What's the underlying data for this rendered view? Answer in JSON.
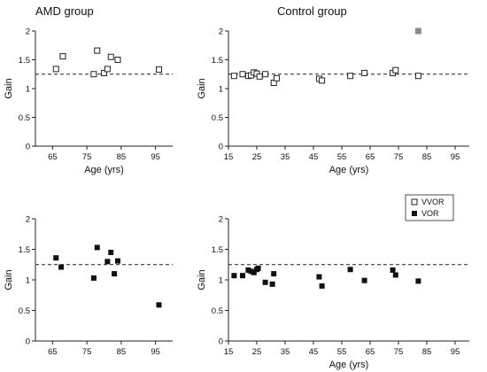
{
  "figure": {
    "titles": {
      "amd": "AMD group",
      "control": "Control group"
    },
    "legend": {
      "vvor_label": "VVOR",
      "vor_label": "VOR"
    },
    "colors": {
      "vvor_fill": "#ffffff",
      "vvor_stroke": "#222222",
      "vor_fill": "#111111",
      "outlier_fill": "#8a8a8a",
      "reference_line": "#222222",
      "axis": "#222222"
    }
  },
  "chart_data": [
    {
      "id": "amd-vvor",
      "type": "scatter",
      "title": "AMD group",
      "xlabel": "Age (yrs)",
      "ylabel": "Gain",
      "xlim": [
        60,
        100
      ],
      "ylim": [
        0,
        2
      ],
      "xticks": [
        65,
        75,
        85,
        95
      ],
      "yticks": [
        0,
        0.5,
        1,
        1.5,
        2
      ],
      "reference_line": 1.25,
      "marker": "open-square",
      "points": [
        [
          66,
          1.34
        ],
        [
          68,
          1.56
        ],
        [
          77,
          1.25
        ],
        [
          78,
          1.66
        ],
        [
          80,
          1.27
        ],
        [
          81,
          1.34
        ],
        [
          82,
          1.55
        ],
        [
          84,
          1.5
        ],
        [
          96,
          1.33
        ]
      ]
    },
    {
      "id": "control-vvor",
      "type": "scatter",
      "title": "Control group",
      "xlabel": "Age (yrs)",
      "ylabel": "Gain",
      "xlim": [
        15,
        100
      ],
      "ylim": [
        0,
        2
      ],
      "xticks": [
        15,
        25,
        35,
        45,
        55,
        65,
        75,
        85,
        95
      ],
      "yticks": [
        0,
        0.5,
        1,
        1.5,
        2
      ],
      "reference_line": 1.25,
      "marker": "open-square",
      "points": [
        [
          17,
          1.22
        ],
        [
          20,
          1.25
        ],
        [
          22,
          1.22
        ],
        [
          23,
          1.23
        ],
        [
          24,
          1.28
        ],
        [
          25,
          1.26
        ],
        [
          26,
          1.21
        ],
        [
          28,
          1.25
        ],
        [
          31,
          1.1
        ],
        [
          32,
          1.18
        ],
        [
          47,
          1.17
        ],
        [
          48,
          1.14
        ],
        [
          58,
          1.22
        ],
        [
          63,
          1.27
        ],
        [
          73,
          1.27
        ],
        [
          74,
          1.32
        ],
        [
          82,
          1.22
        ]
      ],
      "outlier_points": [
        [
          82,
          2.0
        ]
      ]
    },
    {
      "id": "amd-vor",
      "type": "scatter",
      "title": "",
      "xlabel": "",
      "ylabel": "Gain",
      "xlim": [
        60,
        100
      ],
      "ylim": [
        0,
        2
      ],
      "xticks": [
        65,
        75,
        85,
        95
      ],
      "yticks": [
        0,
        0.5,
        1,
        1.5,
        2
      ],
      "reference_line": 1.25,
      "marker": "filled-square",
      "points": [
        [
          66,
          1.36
        ],
        [
          67.5,
          1.21
        ],
        [
          77,
          1.03
        ],
        [
          78,
          1.53
        ],
        [
          81,
          1.3
        ],
        [
          82,
          1.45
        ],
        [
          83,
          1.1
        ],
        [
          84,
          1.31
        ],
        [
          96,
          0.59
        ]
      ]
    },
    {
      "id": "control-vor",
      "type": "scatter",
      "title": "",
      "xlabel": "Age (yrs)",
      "ylabel": "Gain",
      "xlim": [
        15,
        100
      ],
      "ylim": [
        0,
        2
      ],
      "xticks": [
        15,
        25,
        35,
        45,
        55,
        65,
        75,
        85,
        95
      ],
      "yticks": [
        0,
        0.5,
        1,
        1.5,
        2
      ],
      "reference_line": 1.25,
      "marker": "filled-square",
      "points": [
        [
          17,
          1.07
        ],
        [
          20,
          1.07
        ],
        [
          22,
          1.16
        ],
        [
          23,
          1.14
        ],
        [
          24,
          1.12
        ],
        [
          25,
          1.17
        ],
        [
          25.5,
          1.19
        ],
        [
          28,
          0.96
        ],
        [
          30.5,
          0.93
        ],
        [
          31,
          1.1
        ],
        [
          47,
          1.05
        ],
        [
          48,
          0.9
        ],
        [
          58,
          1.17
        ],
        [
          63,
          0.99
        ],
        [
          73,
          1.16
        ],
        [
          74,
          1.08
        ],
        [
          82,
          0.98
        ]
      ]
    }
  ]
}
